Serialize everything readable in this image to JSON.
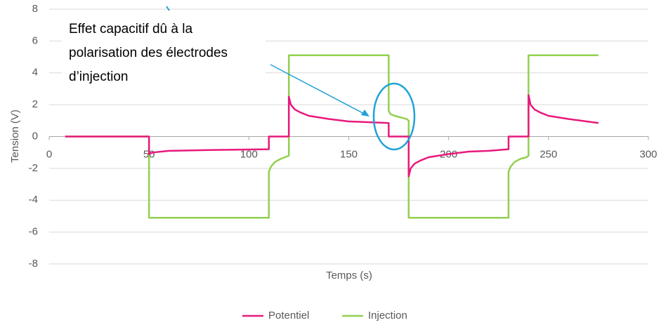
{
  "chart_data": {
    "type": "line",
    "ylabel": "Tension (V)",
    "xlabel": "Temps (s)",
    "annotation": [
      "Effet capacitif dû à la",
      "polarisation des électrodes",
      "d’injection"
    ],
    "xlim": [
      0,
      300
    ],
    "xticks": [
      0,
      50,
      100,
      150,
      200,
      250,
      300
    ],
    "ylim": [
      -8,
      8
    ],
    "yticks": [
      -8,
      -6,
      -4,
      -2,
      0,
      2,
      4,
      6,
      8
    ],
    "grid": true,
    "legend": "bottom",
    "series": [
      {
        "name": "Potentiel",
        "color": "#e8197d",
        "x": [
          8,
          50,
          50,
          52,
          60,
          80,
          110,
          110,
          120,
          120,
          121,
          123,
          126,
          130,
          140,
          150,
          160,
          170,
          170,
          180,
          180,
          181,
          183,
          186,
          190,
          200,
          210,
          220,
          230,
          230,
          240,
          240,
          241,
          243,
          246,
          250,
          260,
          275
        ],
        "values": [
          0,
          0,
          -1.1,
          -1.0,
          -0.9,
          -0.85,
          -0.8,
          0,
          0,
          2.5,
          2.0,
          1.7,
          1.5,
          1.3,
          1.1,
          0.95,
          0.9,
          0.85,
          0,
          0,
          -2.5,
          -2.0,
          -1.7,
          -1.5,
          -1.3,
          -1.1,
          -0.95,
          -0.9,
          -0.8,
          0,
          0,
          2.6,
          2.0,
          1.7,
          1.5,
          1.3,
          1.1,
          0.85
        ]
      },
      {
        "name": "Injection",
        "color": "#92d050",
        "x": [
          8,
          50,
          50,
          110,
          110,
          111,
          113,
          116,
          118,
          120,
          120,
          170,
          170,
          171,
          173,
          176,
          179,
          180,
          180,
          230,
          230,
          231,
          233,
          236,
          239,
          240,
          240,
          275
        ],
        "values": [
          0,
          0,
          -5.1,
          -5.1,
          -2.2,
          -1.9,
          -1.6,
          -1.4,
          -1.3,
          -1.2,
          5.1,
          5.1,
          1.6,
          1.4,
          1.3,
          1.2,
          1.1,
          1.0,
          -5.1,
          -5.1,
          -2.2,
          -1.9,
          -1.6,
          -1.4,
          -1.3,
          -1.2,
          5.1,
          5.1
        ]
      }
    ]
  }
}
